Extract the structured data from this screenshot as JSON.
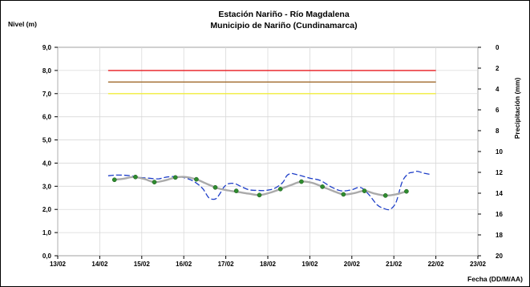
{
  "chart_data": {
    "type": "line",
    "title_line1": "Estación Nariño  - Río Magdalena",
    "title_line2": "Municipio de Nariño (Cundinamarca)",
    "ylabel_left": "Nivel (m)",
    "ylabel_right": "Precipitación (mm)",
    "xlabel": "Fecha (DD/M/AA)",
    "x_ticks": [
      "13/02",
      "14/02",
      "15/02",
      "16/02",
      "17/02",
      "18/02",
      "19/02",
      "20/02",
      "21/02",
      "22/02",
      "23/02"
    ],
    "y_left_ticks": [
      "0,0",
      "1,0",
      "2,0",
      "3,0",
      "4,0",
      "5,0",
      "6,0",
      "7,0",
      "8,0",
      "9,0"
    ],
    "y_right_ticks": [
      "0",
      "2",
      "4",
      "6",
      "8",
      "10",
      "12",
      "14",
      "16",
      "18",
      "20"
    ],
    "xlim": [
      0,
      10
    ],
    "ylim_left": [
      0,
      9
    ],
    "ylim_right": [
      20,
      0
    ],
    "grid": true,
    "threshold_lines": [
      {
        "value": 8.0,
        "x_start": 1.2,
        "x_end": 9.0,
        "color": "#e8191f"
      },
      {
        "value": 7.5,
        "x_start": 1.2,
        "x_end": 9.0,
        "color": "#a06a2b"
      },
      {
        "value": 7.0,
        "x_start": 1.2,
        "x_end": 9.0,
        "color": "#f2ee3d"
      }
    ],
    "series": [
      {
        "style": "dashed",
        "color": "#1f3fc8",
        "x": [
          1.2,
          1.35,
          1.55,
          1.75,
          1.95,
          2.15,
          2.4,
          2.6,
          2.85,
          3.05,
          3.25,
          3.45,
          3.6,
          3.75,
          3.85,
          3.95,
          4.05,
          4.2,
          4.35,
          4.55,
          4.75,
          4.95,
          5.15,
          5.35,
          5.45,
          5.55,
          5.65,
          5.8,
          6.0,
          6.25,
          6.5,
          6.75,
          7.0,
          7.2,
          7.4,
          7.6,
          7.75,
          7.9,
          8.05,
          8.2,
          8.35,
          8.45,
          8.55,
          8.65,
          8.75,
          8.9
        ],
        "values": [
          3.45,
          3.48,
          3.48,
          3.45,
          3.38,
          3.35,
          3.32,
          3.4,
          3.42,
          3.35,
          3.2,
          2.9,
          2.5,
          2.45,
          2.65,
          2.95,
          3.1,
          3.12,
          3.0,
          2.85,
          2.82,
          2.82,
          2.9,
          3.15,
          3.45,
          3.55,
          3.52,
          3.45,
          3.35,
          3.25,
          2.98,
          2.8,
          2.85,
          2.95,
          2.65,
          2.2,
          2.05,
          2.0,
          2.3,
          3.2,
          3.55,
          3.6,
          3.65,
          3.6,
          3.55,
          3.5
        ]
      },
      {
        "style": "smooth",
        "color": "#aaaaaa",
        "x": [
          1.3,
          1.55,
          1.8,
          2.05,
          2.3,
          2.55,
          2.8,
          3.05,
          3.3,
          3.55,
          3.8,
          4.05,
          4.3,
          4.55,
          4.8,
          5.05,
          5.3,
          5.55,
          5.8,
          6.05,
          6.3,
          6.55,
          6.8,
          7.05,
          7.3,
          7.55,
          7.8,
          8.05,
          8.3
        ],
        "values": [
          3.28,
          3.32,
          3.4,
          3.32,
          3.18,
          3.25,
          3.38,
          3.4,
          3.3,
          3.1,
          2.92,
          2.82,
          2.75,
          2.68,
          2.62,
          2.72,
          2.88,
          3.05,
          3.2,
          3.15,
          2.98,
          2.8,
          2.65,
          2.7,
          2.8,
          2.68,
          2.6,
          2.65,
          2.78
        ]
      },
      {
        "style": "markers",
        "color": "#2e8b2e",
        "x": [
          1.35,
          1.85,
          2.3,
          2.8,
          3.3,
          3.75,
          4.25,
          4.8,
          5.3,
          5.8,
          6.3,
          6.8,
          7.3,
          7.8,
          8.3
        ],
        "values": [
          3.28,
          3.4,
          3.18,
          3.38,
          3.3,
          2.95,
          2.8,
          2.62,
          2.88,
          3.2,
          2.98,
          2.65,
          2.8,
          2.6,
          2.78
        ]
      }
    ]
  }
}
